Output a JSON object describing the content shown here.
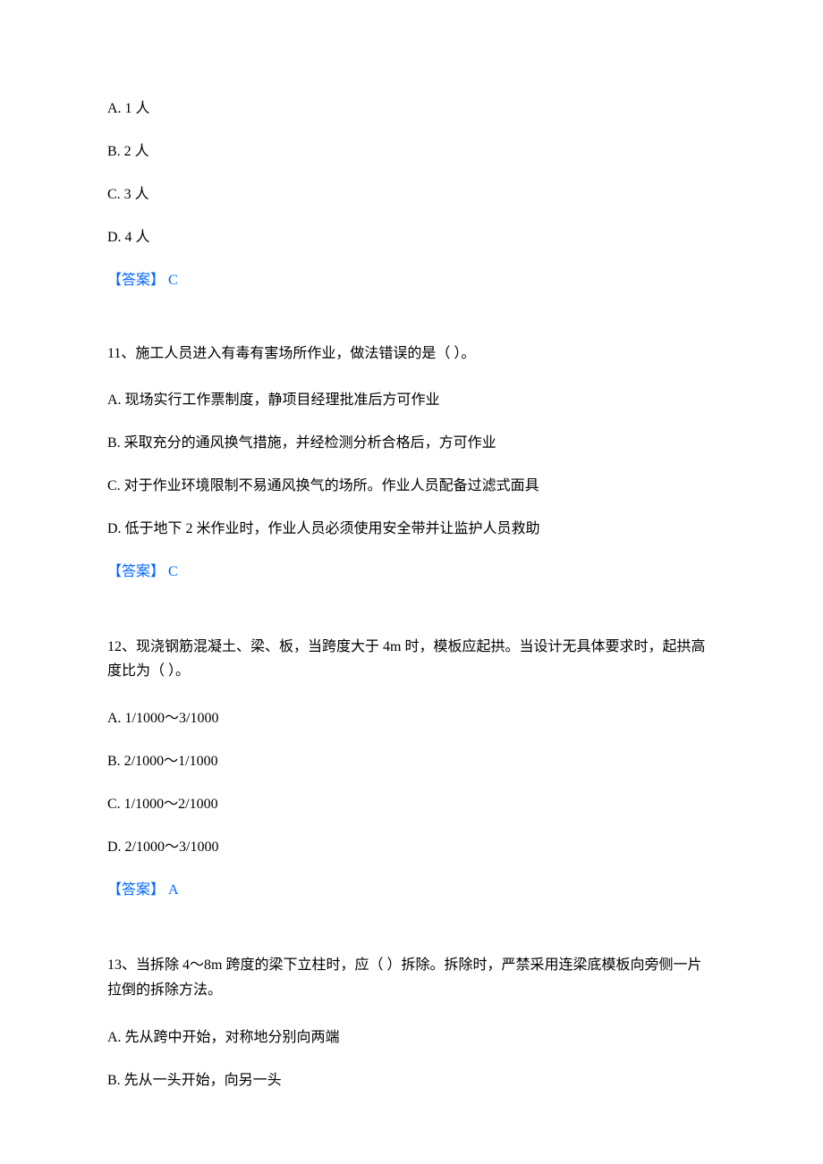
{
  "q10": {
    "options": {
      "A": "A. 1 人",
      "B": "B. 2 人",
      "C": "C. 3 人",
      "D": "D. 4 人"
    },
    "answer": "【答案】 C"
  },
  "q11": {
    "text": "11、施工人员进入有毒有害场所作业，做法错误的是（ ）。",
    "options": {
      "A": "A. 现场实行工作票制度，静项目经理批准后方可作业",
      "B": "B. 采取充分的通风换气措施，并经检测分析合格后，方可作业",
      "C": "C. 对于作业环境限制不易通风换气的场所。作业人员配备过滤式面具",
      "D": "D. 低于地下 2 米作业时，作业人员必须使用安全带并让监护人员救助"
    },
    "answer": "【答案】 C"
  },
  "q12": {
    "text": "12、现浇钢筋混凝土、梁、板，当跨度大于 4m 时，模板应起拱。当设计无具体要求时，起拱高度比为（ ）。",
    "options": {
      "A": "A. 1/1000～3/1000",
      "B": "B. 2/1000～1/1000",
      "C": "C. 1/1000～2/1000",
      "D": "D. 2/1000～3/1000"
    },
    "answer": "【答案】 A"
  },
  "q13": {
    "text": "13、当拆除 4～8m 跨度的梁下立柱时，应（ ）拆除。拆除时，严禁采用连梁底模板向旁侧一片拉倒的拆除方法。",
    "options": {
      "A": "A. 先从跨中开始，对称地分别向两端",
      "B": "B. 先从一头开始，向另一头"
    }
  }
}
